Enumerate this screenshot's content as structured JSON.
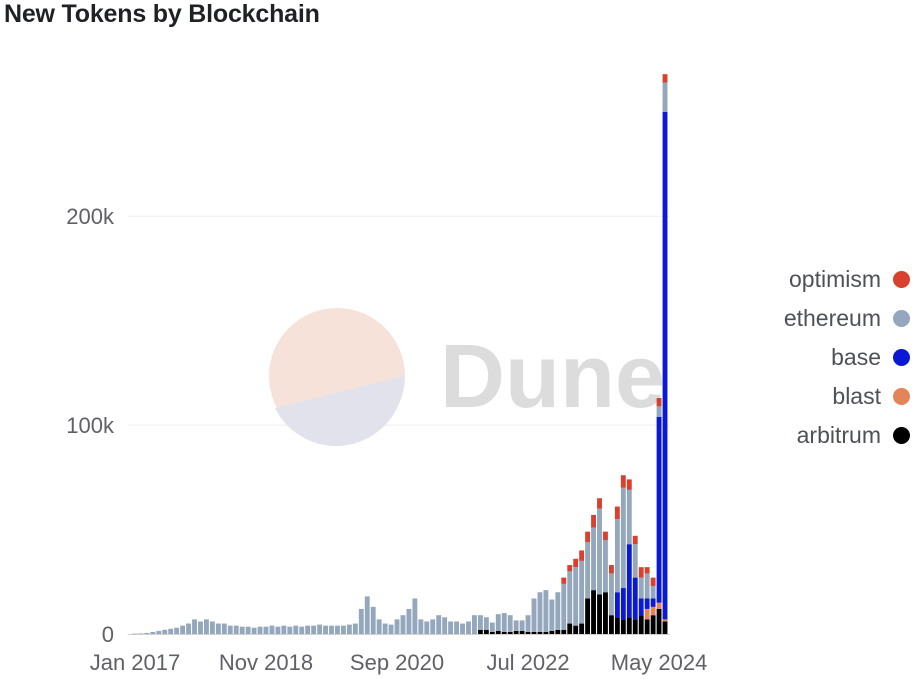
{
  "chart_data": {
    "type": "bar",
    "title": "New Tokens by Blockchain",
    "stacked": true,
    "legend_position": "right",
    "grid": "horizontal",
    "watermark": "Dune",
    "ylim": [
      0,
      270000
    ],
    "yticks": [
      {
        "value": 0,
        "label": "0"
      },
      {
        "value": 100000,
        "label": "100k"
      },
      {
        "value": 200000,
        "label": "200k"
      }
    ],
    "xticks": [
      {
        "index": 0,
        "label": "Jan 2017"
      },
      {
        "index": 22,
        "label": "Nov 2018"
      },
      {
        "index": 44,
        "label": "Sep 2020"
      },
      {
        "index": 66,
        "label": "Jul 2022"
      },
      {
        "index": 88,
        "label": "May 2024"
      }
    ],
    "categories": [
      "2017-01",
      "2017-02",
      "2017-03",
      "2017-04",
      "2017-05",
      "2017-06",
      "2017-07",
      "2017-08",
      "2017-09",
      "2017-10",
      "2017-11",
      "2017-12",
      "2018-01",
      "2018-02",
      "2018-03",
      "2018-04",
      "2018-05",
      "2018-06",
      "2018-07",
      "2018-08",
      "2018-09",
      "2018-10",
      "2018-11",
      "2018-12",
      "2019-01",
      "2019-02",
      "2019-03",
      "2019-04",
      "2019-05",
      "2019-06",
      "2019-07",
      "2019-08",
      "2019-09",
      "2019-10",
      "2019-11",
      "2019-12",
      "2020-01",
      "2020-02",
      "2020-03",
      "2020-04",
      "2020-05",
      "2020-06",
      "2020-07",
      "2020-08",
      "2020-09",
      "2020-10",
      "2020-11",
      "2020-12",
      "2021-01",
      "2021-02",
      "2021-03",
      "2021-04",
      "2021-05",
      "2021-06",
      "2021-07",
      "2021-08",
      "2021-09",
      "2021-10",
      "2021-11",
      "2021-12",
      "2022-01",
      "2022-02",
      "2022-03",
      "2022-04",
      "2022-05",
      "2022-06",
      "2022-07",
      "2022-08",
      "2022-09",
      "2022-10",
      "2022-11",
      "2022-12",
      "2023-01",
      "2023-02",
      "2023-03",
      "2023-04",
      "2023-05",
      "2023-06",
      "2023-07",
      "2023-08",
      "2023-09",
      "2023-10",
      "2023-11",
      "2023-12",
      "2024-01",
      "2024-02",
      "2024-03",
      "2024-04",
      "2024-05",
      "2024-06"
    ],
    "series": [
      {
        "name": "arbitrum",
        "color": "#000000",
        "values": [
          0,
          0,
          0,
          0,
          0,
          0,
          0,
          0,
          0,
          0,
          0,
          0,
          0,
          0,
          0,
          0,
          0,
          0,
          0,
          0,
          0,
          0,
          0,
          0,
          0,
          0,
          0,
          0,
          0,
          0,
          0,
          0,
          0,
          0,
          0,
          0,
          0,
          0,
          0,
          0,
          0,
          0,
          0,
          0,
          0,
          0,
          0,
          0,
          0,
          0,
          0,
          0,
          0,
          0,
          0,
          0,
          0,
          0,
          2000,
          2000,
          1000,
          1500,
          1000,
          1000,
          1500,
          1500,
          1000,
          1000,
          1000,
          1000,
          1500,
          2000,
          2000,
          5000,
          4000,
          5000,
          17000,
          21000,
          19000,
          20000,
          9000,
          8000,
          7000,
          8000,
          7000,
          9000,
          7000,
          9000,
          12000,
          6000
        ]
      },
      {
        "name": "blast",
        "color": "#e38459",
        "values": [
          0,
          0,
          0,
          0,
          0,
          0,
          0,
          0,
          0,
          0,
          0,
          0,
          0,
          0,
          0,
          0,
          0,
          0,
          0,
          0,
          0,
          0,
          0,
          0,
          0,
          0,
          0,
          0,
          0,
          0,
          0,
          0,
          0,
          0,
          0,
          0,
          0,
          0,
          0,
          0,
          0,
          0,
          0,
          0,
          0,
          0,
          0,
          0,
          0,
          0,
          0,
          0,
          0,
          0,
          0,
          0,
          0,
          0,
          0,
          0,
          0,
          0,
          0,
          0,
          0,
          0,
          0,
          0,
          0,
          0,
          0,
          0,
          0,
          0,
          0,
          0,
          0,
          0,
          0,
          0,
          0,
          0,
          0,
          0,
          0,
          0,
          5000,
          4000,
          3000,
          1000
        ]
      },
      {
        "name": "base",
        "color": "#0a1ad4",
        "values": [
          0,
          0,
          0,
          0,
          0,
          0,
          0,
          0,
          0,
          0,
          0,
          0,
          0,
          0,
          0,
          0,
          0,
          0,
          0,
          0,
          0,
          0,
          0,
          0,
          0,
          0,
          0,
          0,
          0,
          0,
          0,
          0,
          0,
          0,
          0,
          0,
          0,
          0,
          0,
          0,
          0,
          0,
          0,
          0,
          0,
          0,
          0,
          0,
          0,
          0,
          0,
          0,
          0,
          0,
          0,
          0,
          0,
          0,
          0,
          0,
          0,
          0,
          0,
          0,
          0,
          0,
          0,
          0,
          0,
          0,
          0,
          0,
          0,
          0,
          0,
          0,
          0,
          0,
          0,
          0,
          0,
          12000,
          15000,
          35000,
          20000,
          8000,
          5000,
          4000,
          89000,
          243000
        ]
      },
      {
        "name": "ethereum",
        "color": "#94a7bd",
        "values": [
          200,
          300,
          500,
          1000,
          1500,
          2000,
          2500,
          3000,
          4000,
          5000,
          7000,
          6000,
          7000,
          6000,
          5000,
          5000,
          4000,
          4000,
          3500,
          3500,
          3000,
          3500,
          3500,
          4000,
          3500,
          4000,
          3500,
          4000,
          3500,
          4000,
          4000,
          4500,
          4000,
          4000,
          4000,
          4000,
          4500,
          5000,
          12000,
          18000,
          13000,
          7000,
          5000,
          4500,
          7000,
          9000,
          12000,
          17000,
          7000,
          6000,
          7000,
          9000,
          8000,
          6000,
          6000,
          5000,
          6000,
          9000,
          7000,
          6000,
          4500,
          8000,
          9000,
          8000,
          5000,
          5000,
          8000,
          16000,
          19000,
          20000,
          15000,
          18000,
          22000,
          25000,
          28000,
          30000,
          27000,
          30000,
          41000,
          25000,
          20000,
          35000,
          48000,
          26000,
          16000,
          10000,
          12000,
          6000,
          5000,
          14000
        ]
      },
      {
        "name": "optimism",
        "color": "#d8412e",
        "values": [
          0,
          0,
          0,
          0,
          0,
          0,
          0,
          0,
          0,
          0,
          0,
          0,
          0,
          0,
          0,
          0,
          0,
          0,
          0,
          0,
          0,
          0,
          0,
          0,
          0,
          0,
          0,
          0,
          0,
          0,
          0,
          0,
          0,
          0,
          0,
          0,
          0,
          0,
          0,
          0,
          0,
          0,
          0,
          0,
          0,
          0,
          0,
          0,
          0,
          0,
          0,
          0,
          0,
          0,
          0,
          0,
          0,
          0,
          0,
          0,
          0,
          0,
          0,
          0,
          0,
          0,
          0,
          0,
          0,
          0,
          0,
          0,
          3000,
          3000,
          4000,
          5000,
          5000,
          6000,
          5000,
          4000,
          4000,
          6000,
          6000,
          5000,
          4000,
          5000,
          3000,
          4000,
          4000,
          4000
        ]
      }
    ]
  },
  "legend": {
    "order": [
      "optimism",
      "ethereum",
      "base",
      "blast",
      "arbitrum"
    ]
  }
}
